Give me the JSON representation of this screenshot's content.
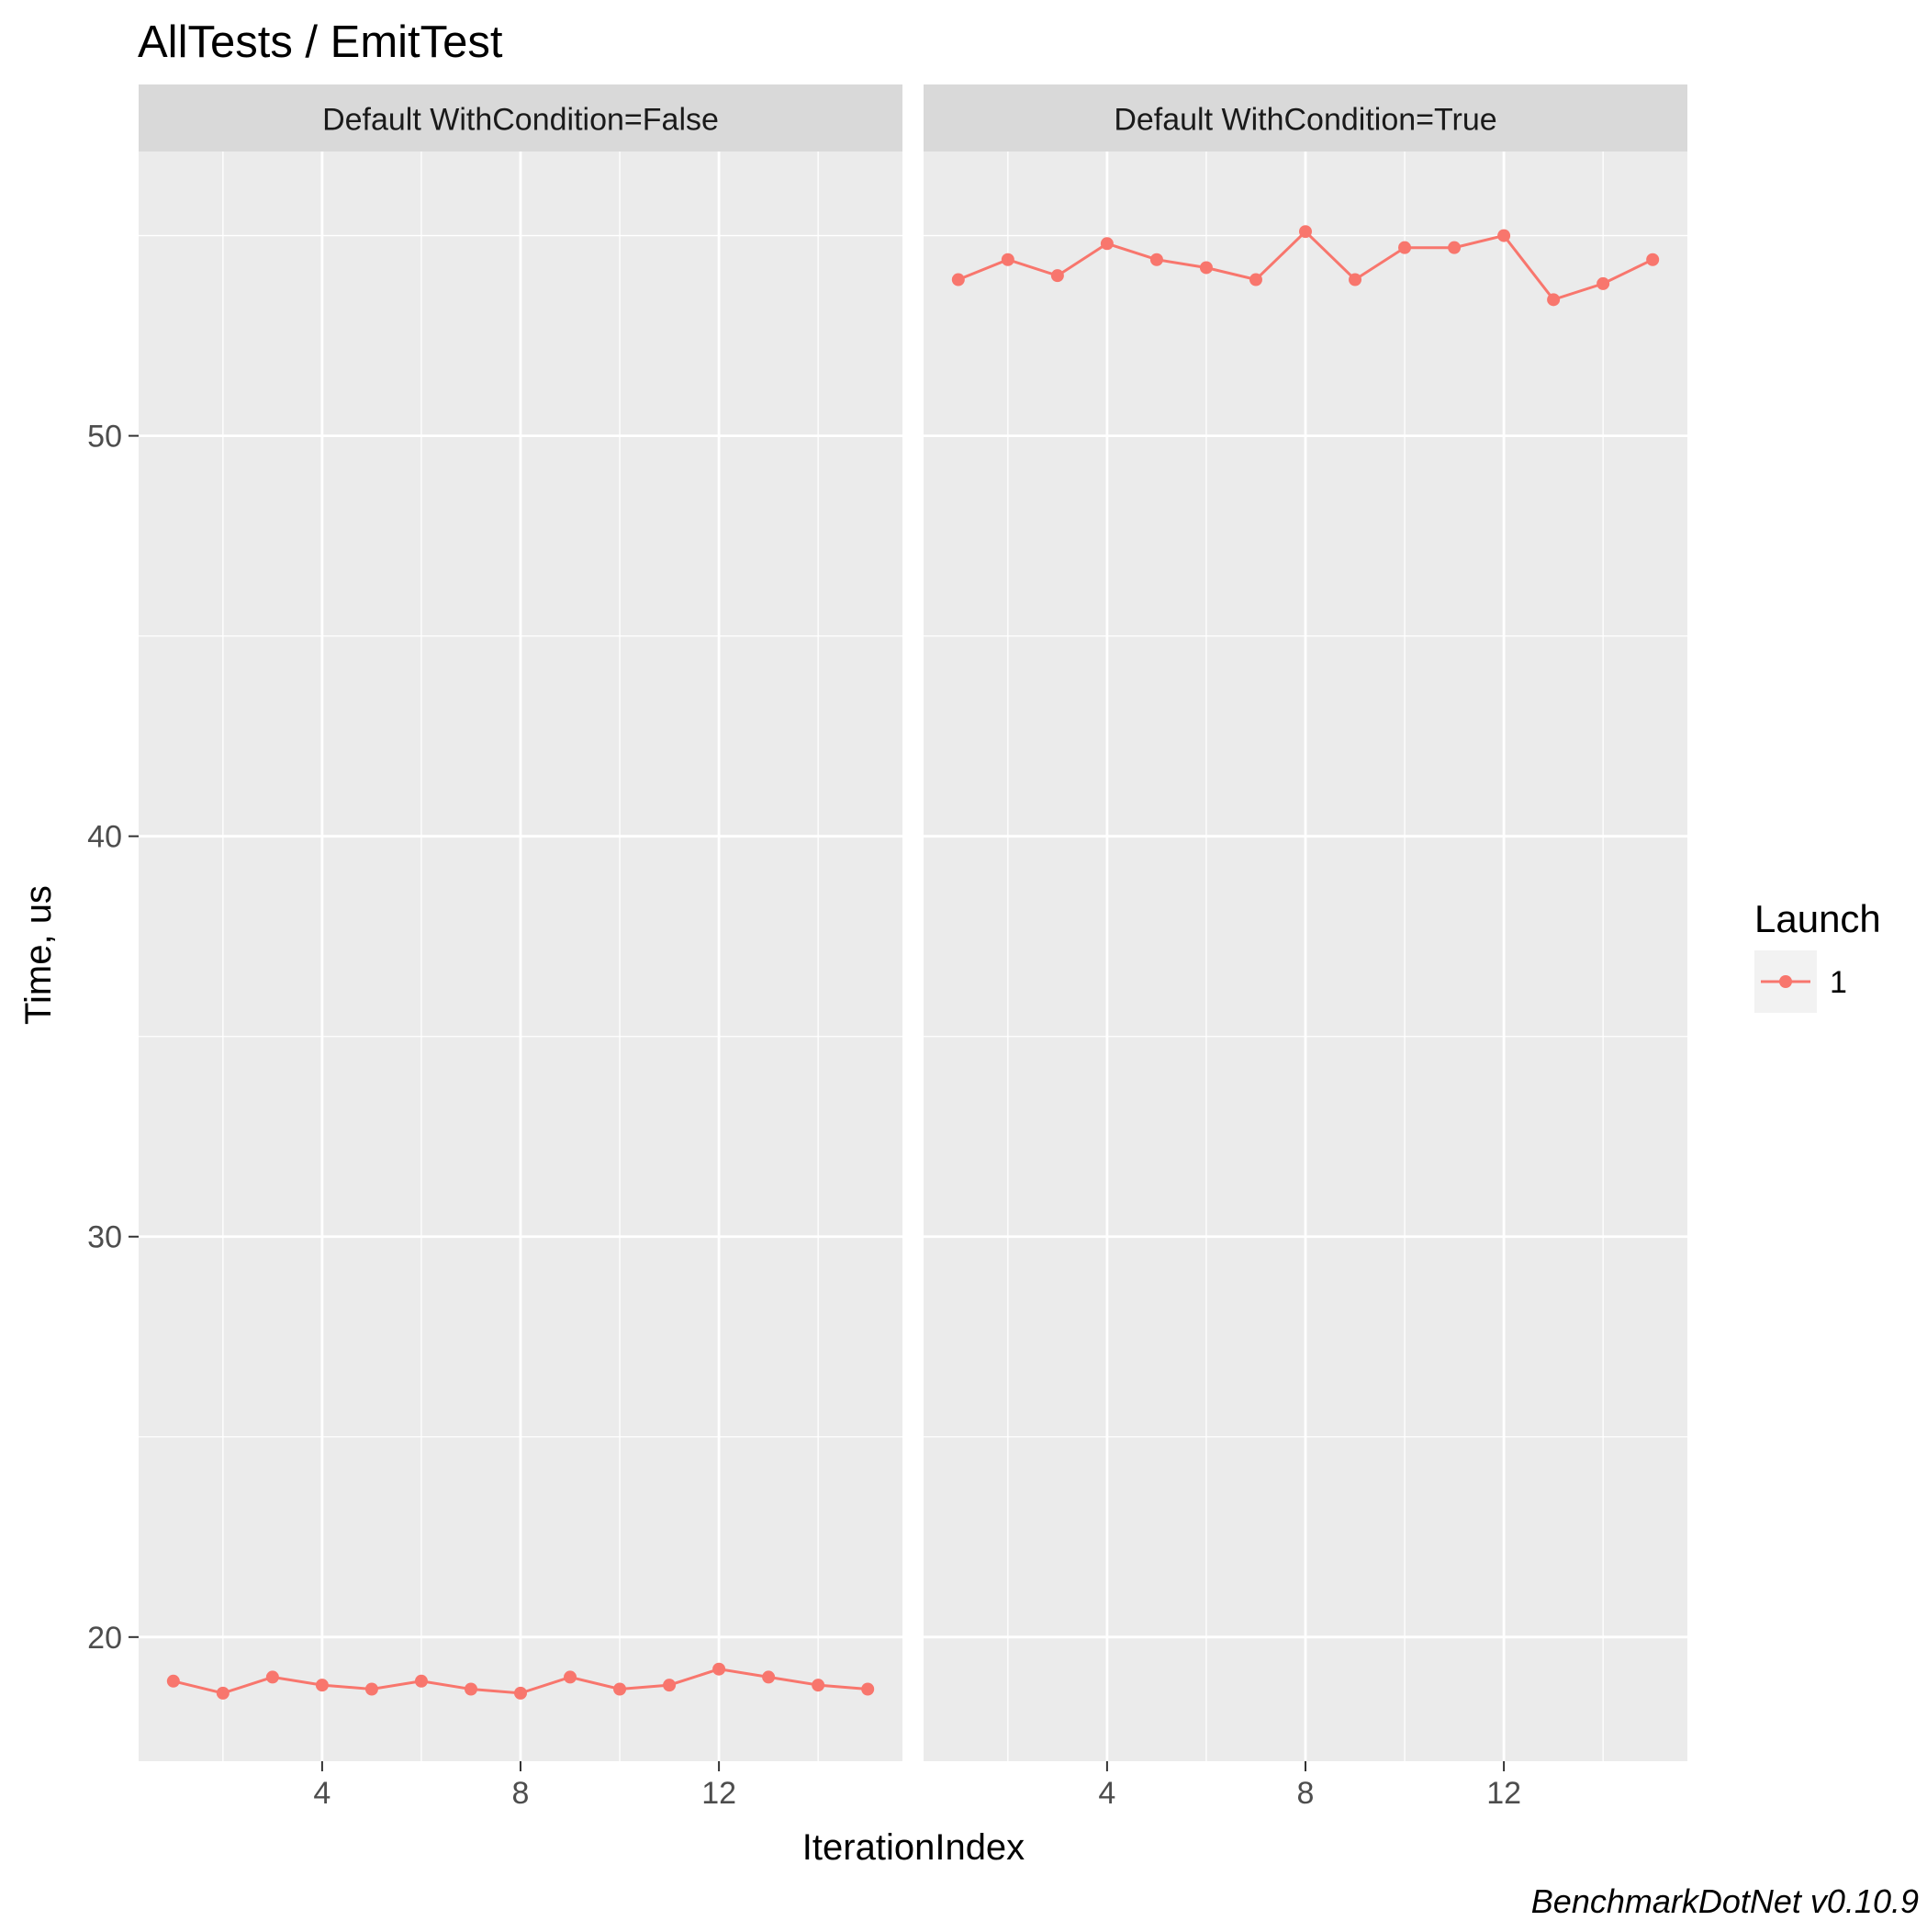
{
  "chart_data": {
    "type": "line",
    "title": "AllTests / EmitTest",
    "xlabel": "IterationIndex",
    "ylabel": "Time, us",
    "caption": "BenchmarkDotNet v0.10.9",
    "legend": {
      "title": "Launch",
      "position": "right",
      "entries": [
        {
          "label": "1",
          "color": "#F8766D"
        }
      ]
    },
    "xlim": [
      0.3,
      15.7
    ],
    "ylim": [
      16.9,
      57.1
    ],
    "x_ticks": [
      4,
      8,
      12
    ],
    "x_tick_labels": [
      "4",
      "8",
      "12"
    ],
    "y_ticks": [
      20,
      30,
      40,
      50
    ],
    "y_tick_labels": [
      "20",
      "30",
      "40",
      "50"
    ],
    "grid": true,
    "panels": [
      {
        "strip_label": "Default WithCondition=False",
        "series": [
          {
            "name": "1",
            "color": "#F8766D",
            "x": [
              1,
              2,
              3,
              4,
              5,
              6,
              7,
              8,
              9,
              10,
              11,
              12,
              13,
              14,
              15
            ],
            "y": [
              18.9,
              18.6,
              19.0,
              18.8,
              18.7,
              18.9,
              18.7,
              18.6,
              19.0,
              18.7,
              18.8,
              19.2,
              19.0,
              18.8,
              18.7
            ]
          }
        ]
      },
      {
        "strip_label": "Default WithCondition=True",
        "series": [
          {
            "name": "1",
            "color": "#F8766D",
            "x": [
              1,
              2,
              3,
              4,
              5,
              6,
              7,
              8,
              9,
              10,
              11,
              12,
              13,
              14,
              15
            ],
            "y": [
              53.9,
              54.4,
              54.0,
              54.8,
              54.4,
              54.2,
              53.9,
              55.1,
              53.9,
              54.7,
              54.7,
              55.0,
              53.4,
              53.8,
              54.4
            ]
          }
        ]
      }
    ]
  }
}
